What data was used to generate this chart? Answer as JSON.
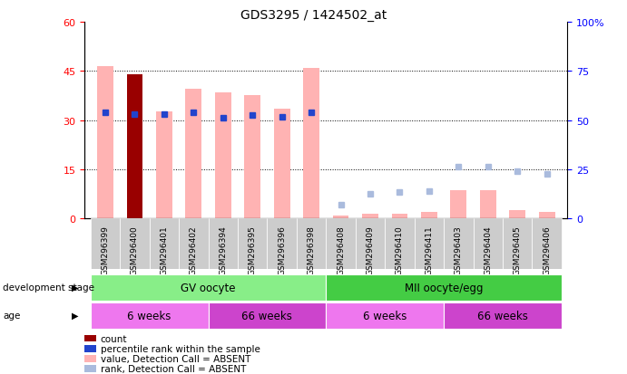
{
  "title": "GDS3295 / 1424502_at",
  "samples": [
    "GSM296399",
    "GSM296400",
    "GSM296401",
    "GSM296402",
    "GSM296394",
    "GSM296395",
    "GSM296396",
    "GSM296398",
    "GSM296408",
    "GSM296409",
    "GSM296410",
    "GSM296411",
    "GSM296403",
    "GSM296404",
    "GSM296405",
    "GSM296406"
  ],
  "value_absent": [
    46.5,
    44.0,
    32.5,
    39.5,
    38.5,
    37.5,
    33.5,
    46.0,
    1.0,
    1.5,
    1.5,
    2.0,
    8.5,
    8.5,
    2.5,
    2.0
  ],
  "rank_present_pct": [
    54.0,
    53.0,
    53.0,
    54.0,
    51.0,
    52.5,
    51.5,
    54.0,
    null,
    null,
    null,
    null,
    null,
    null,
    null,
    null
  ],
  "rank_absent_pct": [
    null,
    null,
    null,
    null,
    null,
    null,
    null,
    null,
    7.0,
    12.5,
    13.5,
    14.0,
    26.5,
    26.5,
    24.0,
    22.5
  ],
  "count_bar_idx": 1,
  "count_val": 44.0,
  "ylim_left": [
    0,
    60
  ],
  "ylim_right": [
    0,
    100
  ],
  "yticks_left": [
    0,
    15,
    30,
    45,
    60
  ],
  "yticks_right": [
    0,
    25,
    50,
    75,
    100
  ],
  "color_value_absent": "#ffb3b3",
  "color_rank_present": "#2244cc",
  "color_rank_absent": "#aabbdd",
  "color_count": "#990000",
  "dev_stages": [
    {
      "label": "GV oocyte",
      "start": 0,
      "end": 7,
      "color": "#88ee88"
    },
    {
      "label": "MII oocyte/egg",
      "start": 8,
      "end": 15,
      "color": "#44cc44"
    }
  ],
  "ages": [
    {
      "label": "6 weeks",
      "start": 0,
      "end": 3,
      "color": "#ee77ee"
    },
    {
      "label": "66 weeks",
      "start": 4,
      "end": 7,
      "color": "#cc44cc"
    },
    {
      "label": "6 weeks",
      "start": 8,
      "end": 11,
      "color": "#ee77ee"
    },
    {
      "label": "66 weeks",
      "start": 12,
      "end": 15,
      "color": "#cc44cc"
    }
  ],
  "legend_items": [
    {
      "label": "count",
      "color": "#990000"
    },
    {
      "label": "percentile rank within the sample",
      "color": "#2244cc"
    },
    {
      "label": "value, Detection Call = ABSENT",
      "color": "#ffb3b3"
    },
    {
      "label": "rank, Detection Call = ABSENT",
      "color": "#aabbdd"
    }
  ]
}
